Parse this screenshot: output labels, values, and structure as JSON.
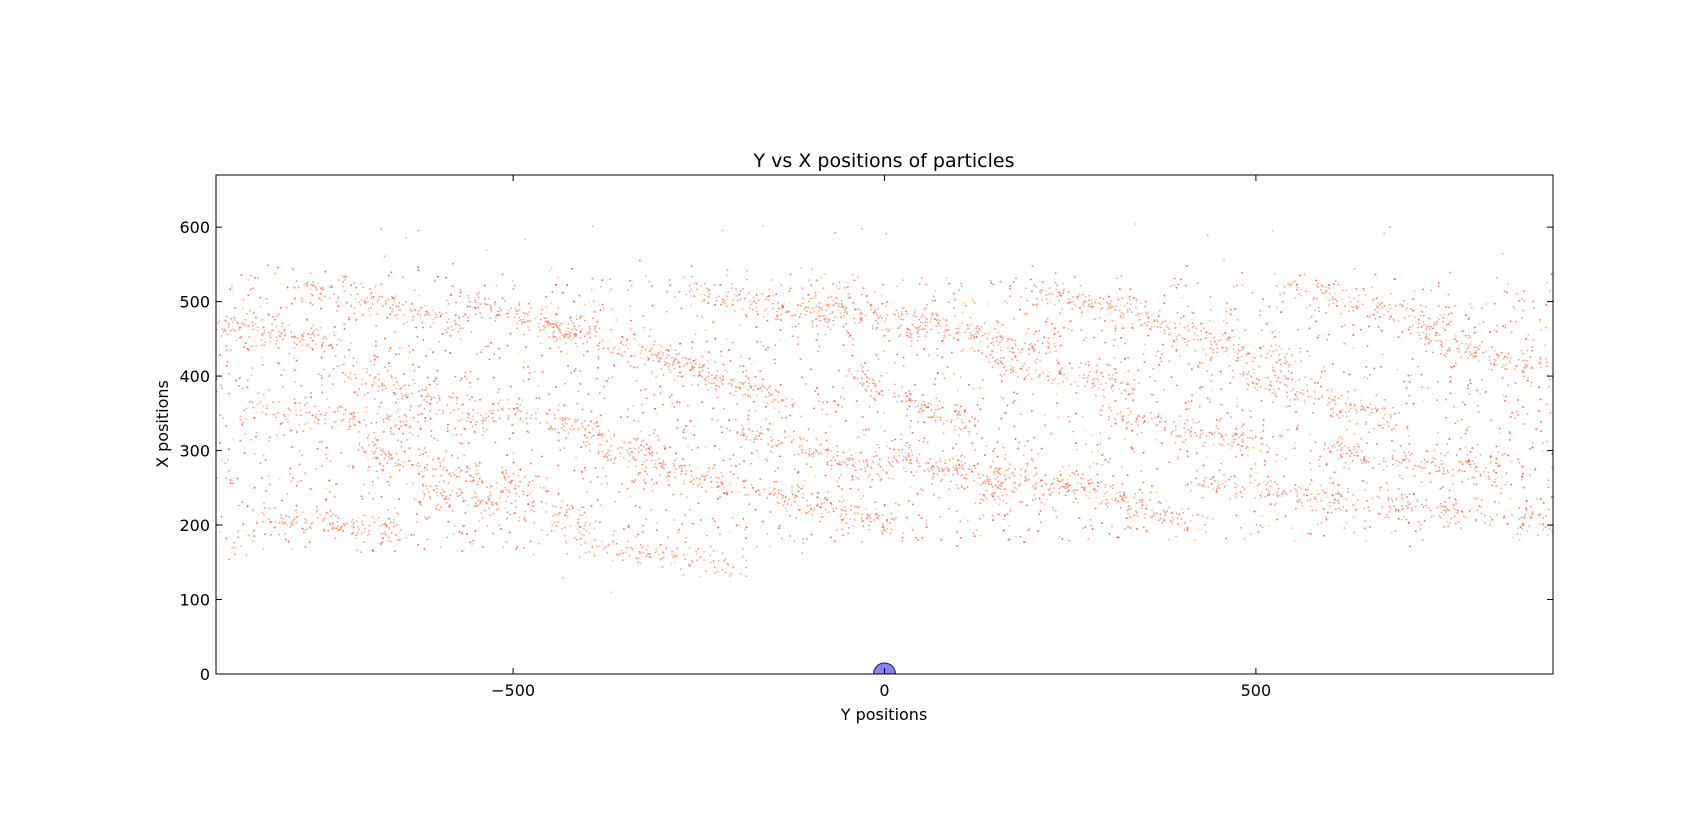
{
  "chart_data": {
    "type": "scatter",
    "title": "Y vs X positions of particles",
    "xlabel": "Y positions",
    "ylabel": "X positions",
    "xlim": [
      -900,
      900
    ],
    "ylim": [
      0,
      670
    ],
    "xticks": [
      -500,
      0,
      500
    ],
    "yticks": [
      0,
      100,
      200,
      300,
      400,
      500,
      600
    ],
    "grid": false,
    "legend": "none",
    "series": [
      {
        "marker_color": "#ff6a3d",
        "description_points": "dense particle cloud sampled in streaks",
        "band": {
          "y_lower_left": 160,
          "y_upper_left": 545,
          "y_lower_right": 195,
          "y_upper_right": 530
        },
        "streaks": [
          {
            "x": [
              -900,
              -720
            ],
            "y": [
              470,
              440
            ]
          },
          {
            "x": [
              -860,
              -620
            ],
            "y": [
              360,
              330
            ]
          },
          {
            "x": [
              -820,
              -650
            ],
            "y": [
              210,
              190
            ]
          },
          {
            "x": [
              -780,
              -560
            ],
            "y": [
              520,
              470
            ]
          },
          {
            "x": [
              -740,
              -520
            ],
            "y": [
              410,
              340
            ]
          },
          {
            "x": [
              -700,
              -480
            ],
            "y": [
              300,
              250
            ]
          },
          {
            "x": [
              -640,
              -400
            ],
            "y": [
              250,
              200
            ]
          },
          {
            "x": [
              -560,
              -380
            ],
            "y": [
              500,
              450
            ]
          },
          {
            "x": [
              -520,
              -300
            ],
            "y": [
              360,
              300
            ]
          },
          {
            "x": [
              -460,
              -240
            ],
            "y": [
              470,
              410
            ]
          },
          {
            "x": [
              -420,
              -180
            ],
            "y": [
              180,
              140
            ]
          },
          {
            "x": [
              -380,
              -200
            ],
            "y": [
              300,
              250
            ]
          },
          {
            "x": [
              -320,
              -120
            ],
            "y": [
              430,
              360
            ]
          },
          {
            "x": [
              -260,
              -60
            ],
            "y": [
              520,
              470
            ]
          },
          {
            "x": [
              -200,
              0
            ],
            "y": [
              330,
              270
            ]
          },
          {
            "x": [
              -150,
              20
            ],
            "y": [
              240,
              200
            ]
          },
          {
            "x": [
              -100,
              60
            ],
            "y": [
              500,
              460
            ]
          },
          {
            "x": [
              -40,
              120
            ],
            "y": [
              400,
              330
            ]
          },
          {
            "x": [
              0,
              160
            ],
            "y": [
              300,
              240
            ]
          },
          {
            "x": [
              40,
              240
            ],
            "y": [
              480,
              430
            ]
          },
          {
            "x": [
              80,
              260
            ],
            "y": [
              280,
              250
            ]
          },
          {
            "x": [
              140,
              340
            ],
            "y": [
              420,
              380
            ]
          },
          {
            "x": [
              200,
              380
            ],
            "y": [
              520,
              470
            ]
          },
          {
            "x": [
              240,
              420
            ],
            "y": [
              260,
              200
            ]
          },
          {
            "x": [
              300,
              520
            ],
            "y": [
              350,
              300
            ]
          },
          {
            "x": [
              360,
              560
            ],
            "y": [
              470,
              410
            ]
          },
          {
            "x": [
              420,
              640
            ],
            "y": [
              260,
              230
            ]
          },
          {
            "x": [
              480,
              700
            ],
            "y": [
              400,
              340
            ]
          },
          {
            "x": [
              540,
              760
            ],
            "y": [
              520,
              470
            ]
          },
          {
            "x": [
              600,
              820
            ],
            "y": [
              300,
              270
            ]
          },
          {
            "x": [
              660,
              900
            ],
            "y": [
              230,
              200
            ]
          },
          {
            "x": [
              720,
              900
            ],
            "y": [
              450,
              410
            ]
          }
        ],
        "num_points": 9000
      },
      {
        "marker_color": "#7070f0",
        "points": [
          {
            "x": 0,
            "y": 0
          }
        ]
      }
    ]
  }
}
